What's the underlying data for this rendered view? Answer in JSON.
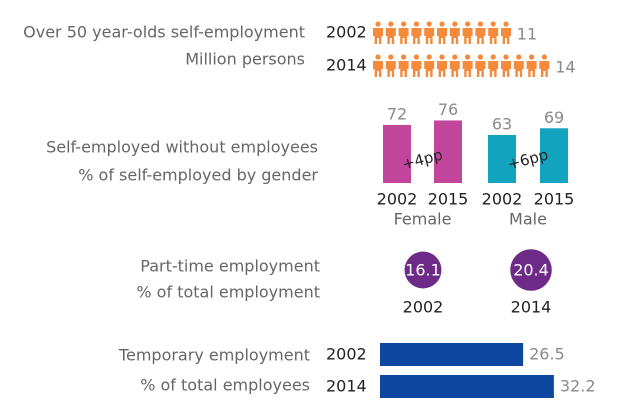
{
  "chart_data": [
    {
      "type": "pictogram",
      "title": "Over 50 year-olds self-employment",
      "subtitle": "Million persons",
      "categories": [
        "2002",
        "2014"
      ],
      "values": [
        11,
        14
      ],
      "color": "#f58a3c"
    },
    {
      "type": "grouped_bar",
      "title": "Self-employed without employees",
      "subtitle": "% of self-employed by gender",
      "categories": [
        "2002",
        "2015"
      ],
      "ylim": [
        20,
        80
      ],
      "groups": [
        {
          "name": "Female",
          "color": "#c2459c",
          "values": [
            72,
            76
          ],
          "annotation": "+4pp"
        },
        {
          "name": "Male",
          "color": "#12a3bf",
          "values": [
            63,
            69
          ],
          "annotation": "+6pp"
        }
      ]
    },
    {
      "type": "bubble",
      "title": "Part-time employment",
      "subtitle": "% of total employment",
      "categories": [
        "2002",
        "2014"
      ],
      "values": [
        16.1,
        20.4
      ],
      "color": "#6e2a87"
    },
    {
      "type": "hbar",
      "title": "Temporary employment",
      "subtitle": "% of total employees",
      "categories": [
        "2002",
        "2014"
      ],
      "values": [
        26.5,
        32.2
      ],
      "color": "#0e479f",
      "xlim": [
        0,
        40
      ]
    }
  ]
}
